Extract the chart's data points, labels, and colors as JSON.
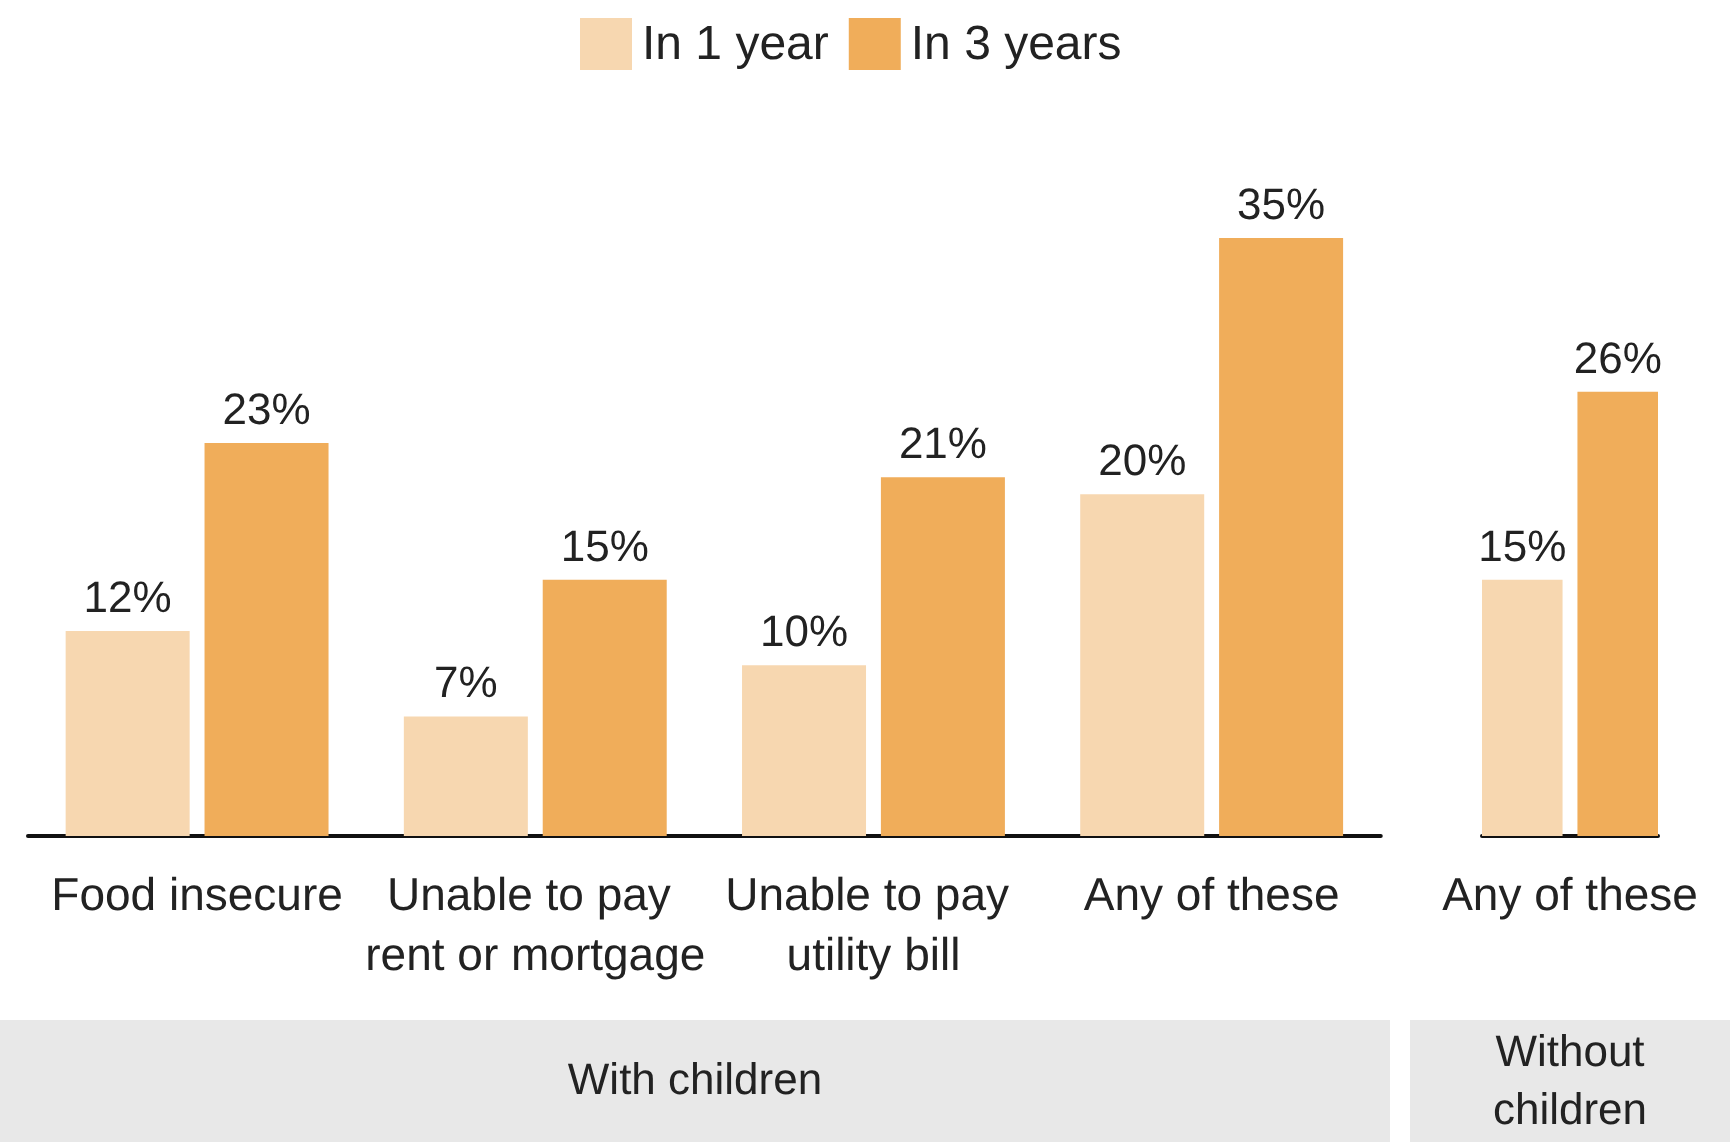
{
  "chart_data": [
    {
      "type": "bar",
      "xlabel": "With children",
      "categories": [
        "Food insecure",
        "Unable to pay rent or mortgage",
        "Unable to pay utility bill",
        "Any of these"
      ],
      "legend": "top",
      "series": [
        {
          "name": "In 1 year",
          "color": "#f7d7b0",
          "values": [
            12,
            7,
            10,
            20
          ],
          "value_labels": [
            "12%",
            "7%",
            "10%",
            "20%"
          ]
        },
        {
          "name": "In 3 years",
          "color": "#f0ad5a",
          "values": [
            23,
            15,
            21,
            35
          ],
          "value_labels": [
            "23%",
            "15%",
            "21%",
            "35%"
          ]
        }
      ]
    },
    {
      "type": "bar",
      "xlabel": "Without children",
      "categories": [
        "Any of these"
      ],
      "series": [
        {
          "color": "#f7d7b0",
          "values": [
            15
          ],
          "value_labels": [
            "15%"
          ]
        },
        {
          "color": "#f0ad5a",
          "values": [
            26
          ],
          "value_labels": [
            "26%"
          ]
        }
      ]
    }
  ]
}
